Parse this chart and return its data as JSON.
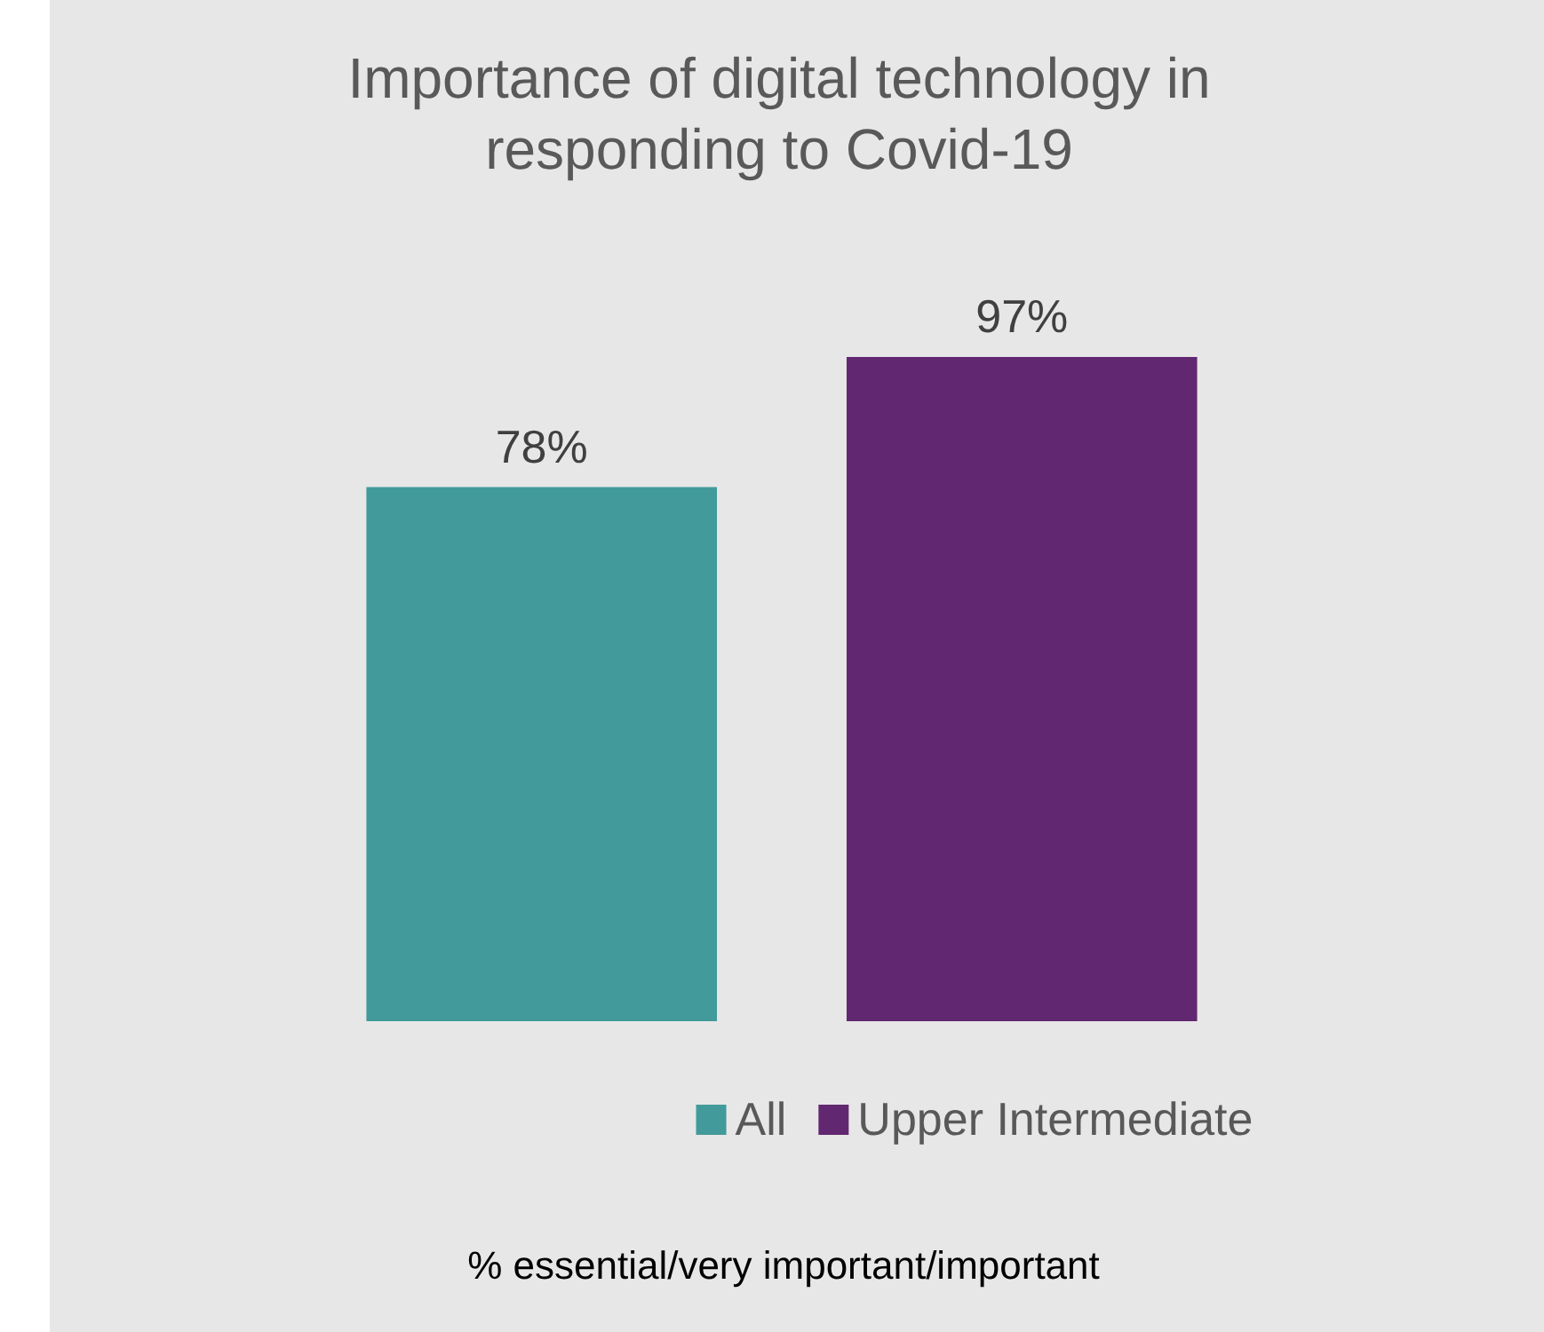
{
  "chart_data": {
    "type": "bar",
    "title": "Importance of digital technology in responding to Covid-19",
    "categories": [
      null
    ],
    "series": [
      {
        "name": "All",
        "color": "#429a9a",
        "values": [
          78
        ],
        "value_labels": [
          "78%"
        ]
      },
      {
        "name": "Upper Intermediate",
        "color": "#622771",
        "values": [
          97
        ],
        "value_labels": [
          "97%"
        ]
      }
    ],
    "legend": "bottom",
    "annotations": [
      "% essential/very important/important"
    ]
  }
}
